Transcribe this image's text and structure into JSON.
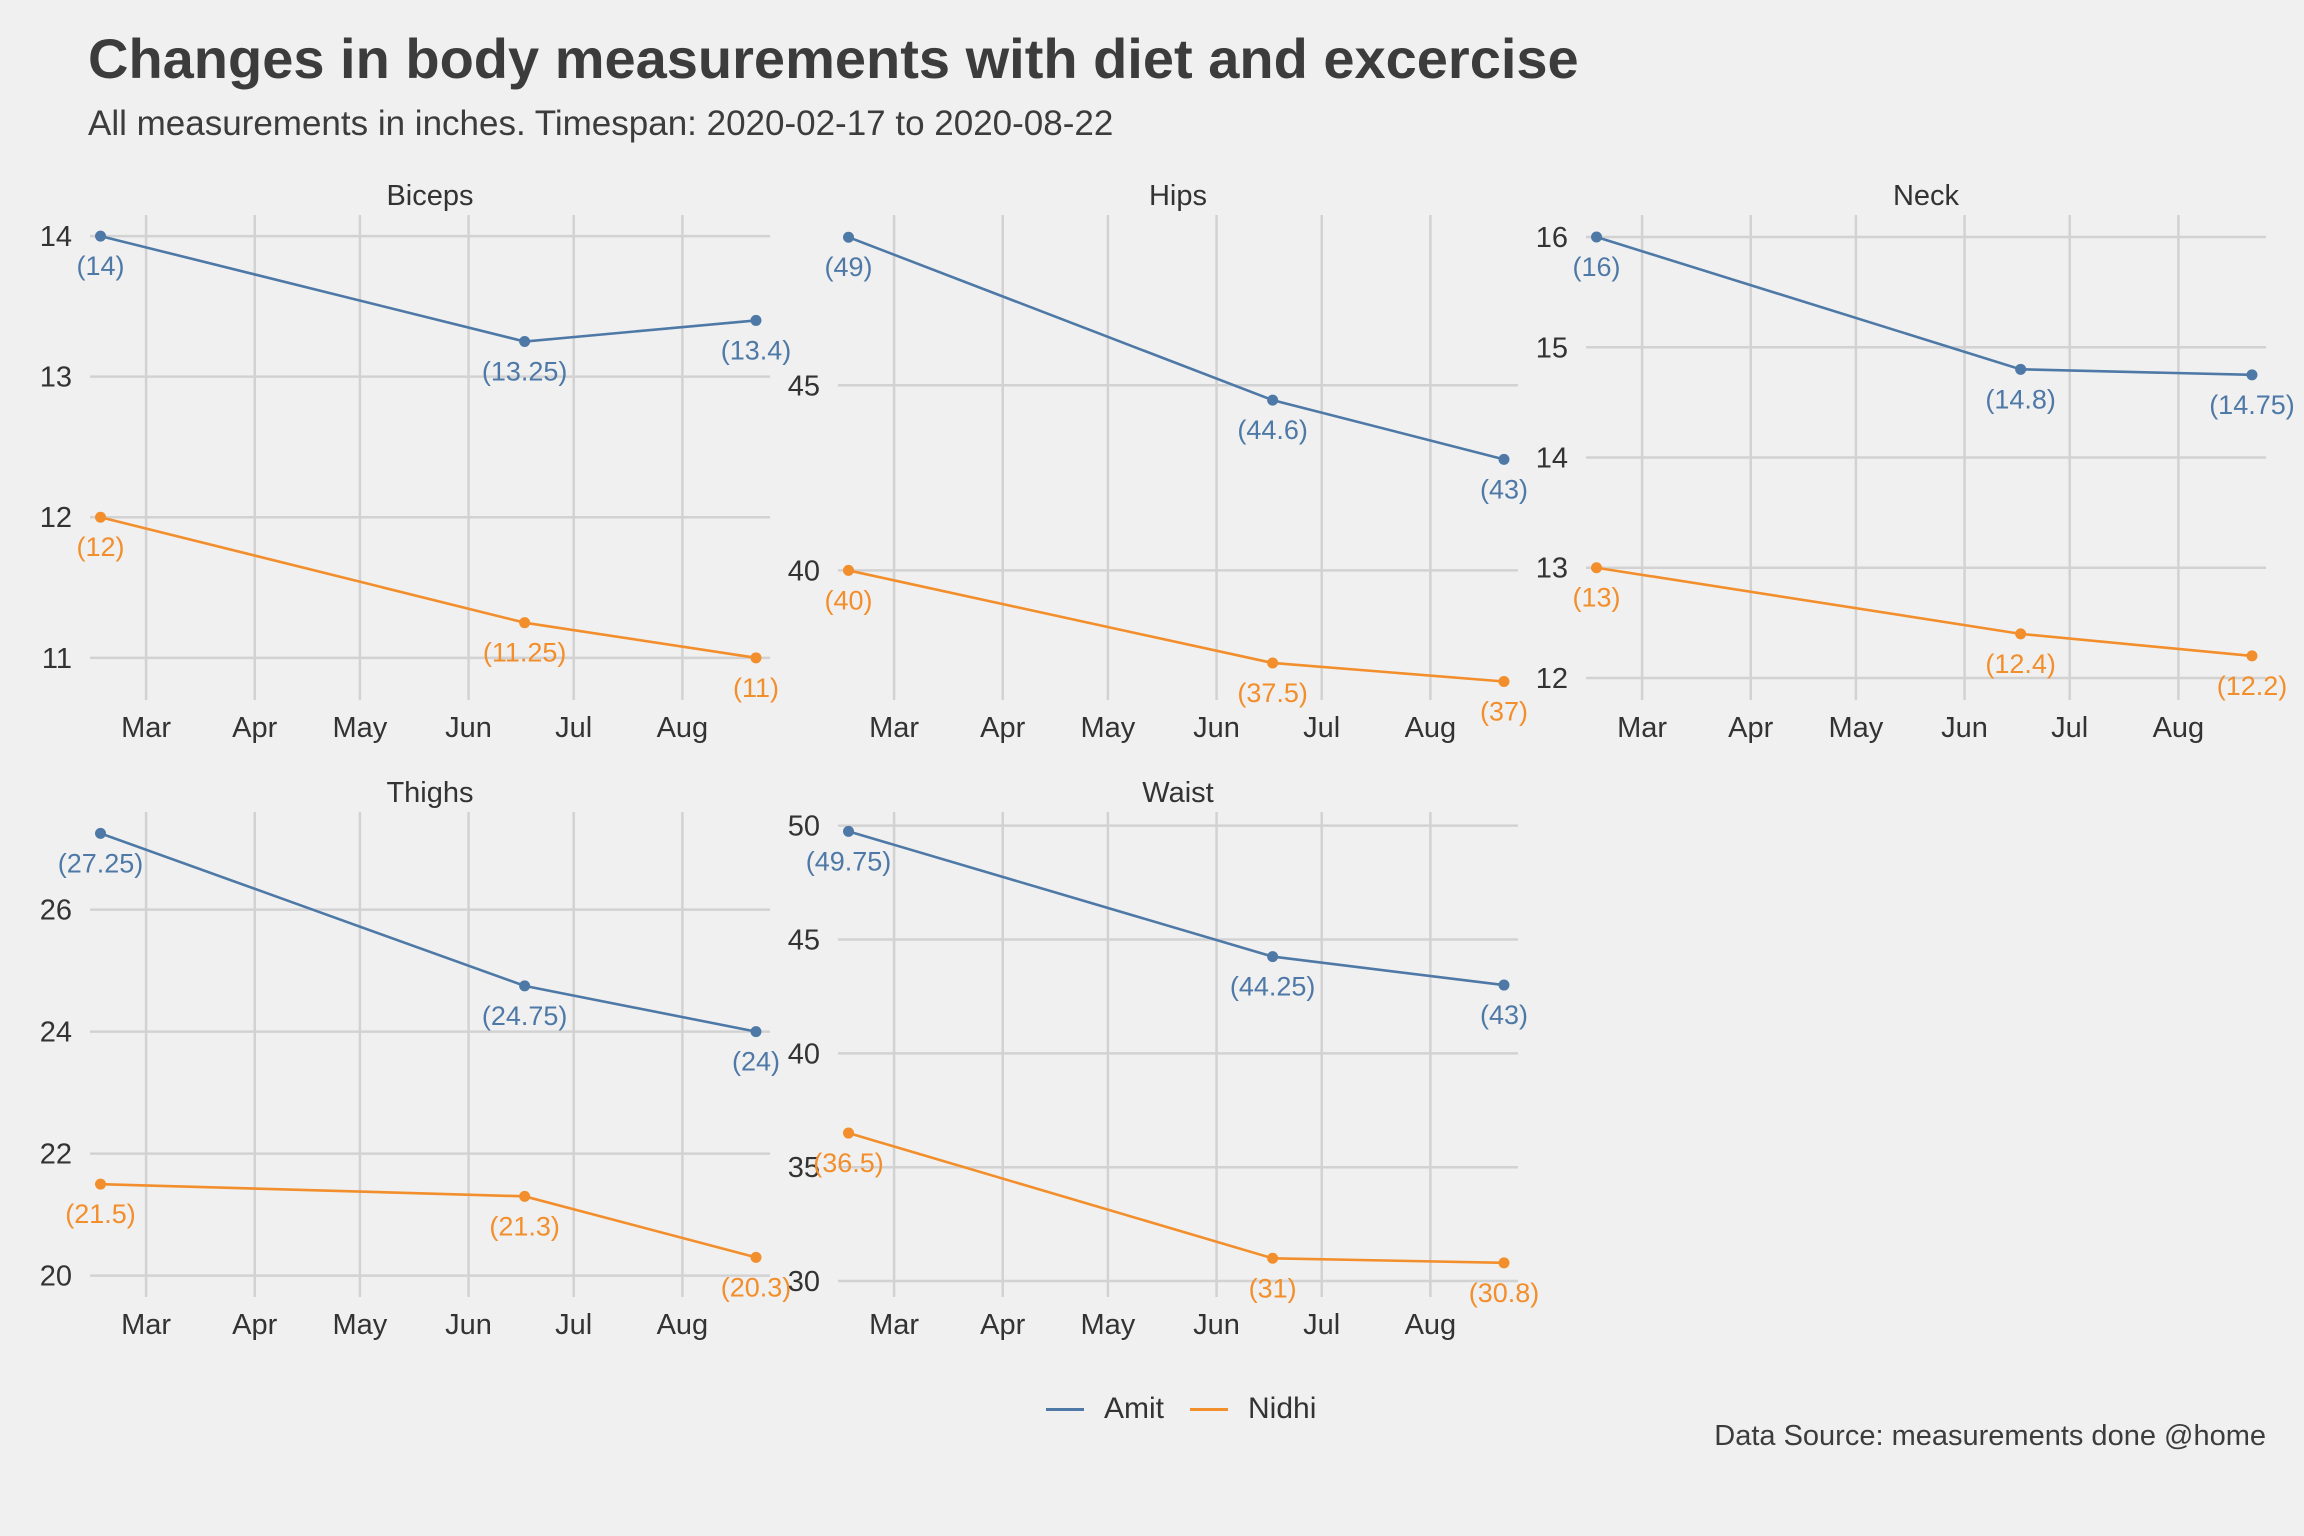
{
  "title": "Changes in body measurements with diet and excercise",
  "subtitle": "All measurements in inches. Timespan: 2020-02-17 to 2020-08-22",
  "caption": "Data Source: measurements done @home",
  "legend": [
    {
      "name": "Amit",
      "color": "#4e79a7"
    },
    {
      "name": "Nidhi",
      "color": "#f28e2b"
    }
  ],
  "chart_data": {
    "type": "line",
    "x_ticks": [
      "Mar",
      "Apr",
      "May",
      "Jun",
      "Jul",
      "Aug"
    ],
    "x_dates": [
      "2020-02-17",
      "2020-06-17",
      "2020-08-22"
    ],
    "grid": true,
    "legend_position": "bottom",
    "panels": [
      {
        "name": "Biceps",
        "ylim": [
          10.7,
          14.15
        ],
        "yticks": [
          11,
          12,
          13,
          14
        ],
        "series": [
          {
            "name": "Amit",
            "values": [
              14,
              13.25,
              13.4
            ],
            "labels": [
              "(14)",
              "(13.25)",
              "(13.4)"
            ]
          },
          {
            "name": "Nidhi",
            "values": [
              12,
              11.25,
              11
            ],
            "labels": [
              "(12)",
              "(11.25)",
              "(11)"
            ]
          }
        ]
      },
      {
        "name": "Hips",
        "ylim": [
          36.5,
          49.6
        ],
        "yticks": [
          40,
          45
        ],
        "series": [
          {
            "name": "Amit",
            "values": [
              49,
              44.6,
              43
            ],
            "labels": [
              "(49)",
              "(44.6)",
              "(43)"
            ]
          },
          {
            "name": "Nidhi",
            "values": [
              40,
              37.5,
              37
            ],
            "labels": [
              "(40)",
              "(37.5)",
              "(37)"
            ]
          }
        ]
      },
      {
        "name": "Neck",
        "ylim": [
          11.8,
          16.2
        ],
        "yticks": [
          12,
          13,
          14,
          15,
          16
        ],
        "series": [
          {
            "name": "Amit",
            "values": [
              16,
              14.8,
              14.75
            ],
            "labels": [
              "(16)",
              "(14.8)",
              "(14.75)"
            ]
          },
          {
            "name": "Nidhi",
            "values": [
              13,
              12.4,
              12.2
            ],
            "labels": [
              "(13)",
              "(12.4)",
              "(12.2)"
            ]
          }
        ]
      },
      {
        "name": "Thighs",
        "ylim": [
          19.65,
          27.6
        ],
        "yticks": [
          20,
          22,
          24,
          26
        ],
        "series": [
          {
            "name": "Amit",
            "values": [
              27.25,
              24.75,
              24
            ],
            "labels": [
              "(27.25)",
              "(24.75)",
              "(24)"
            ]
          },
          {
            "name": "Nidhi",
            "values": [
              21.5,
              21.3,
              20.3
            ],
            "labels": [
              "(21.5)",
              "(21.3)",
              "(20.3)"
            ]
          }
        ]
      },
      {
        "name": "Waist",
        "ylim": [
          29.3,
          50.6
        ],
        "yticks": [
          30,
          35,
          40,
          45,
          50
        ],
        "series": [
          {
            "name": "Amit",
            "values": [
              49.75,
              44.25,
              43
            ],
            "labels": [
              "(49.75)",
              "(44.25)",
              "(43)"
            ]
          },
          {
            "name": "Nidhi",
            "values": [
              36.5,
              31,
              30.8
            ],
            "labels": [
              "(36.5)",
              "(31)",
              "(30.8)"
            ]
          }
        ]
      }
    ]
  }
}
